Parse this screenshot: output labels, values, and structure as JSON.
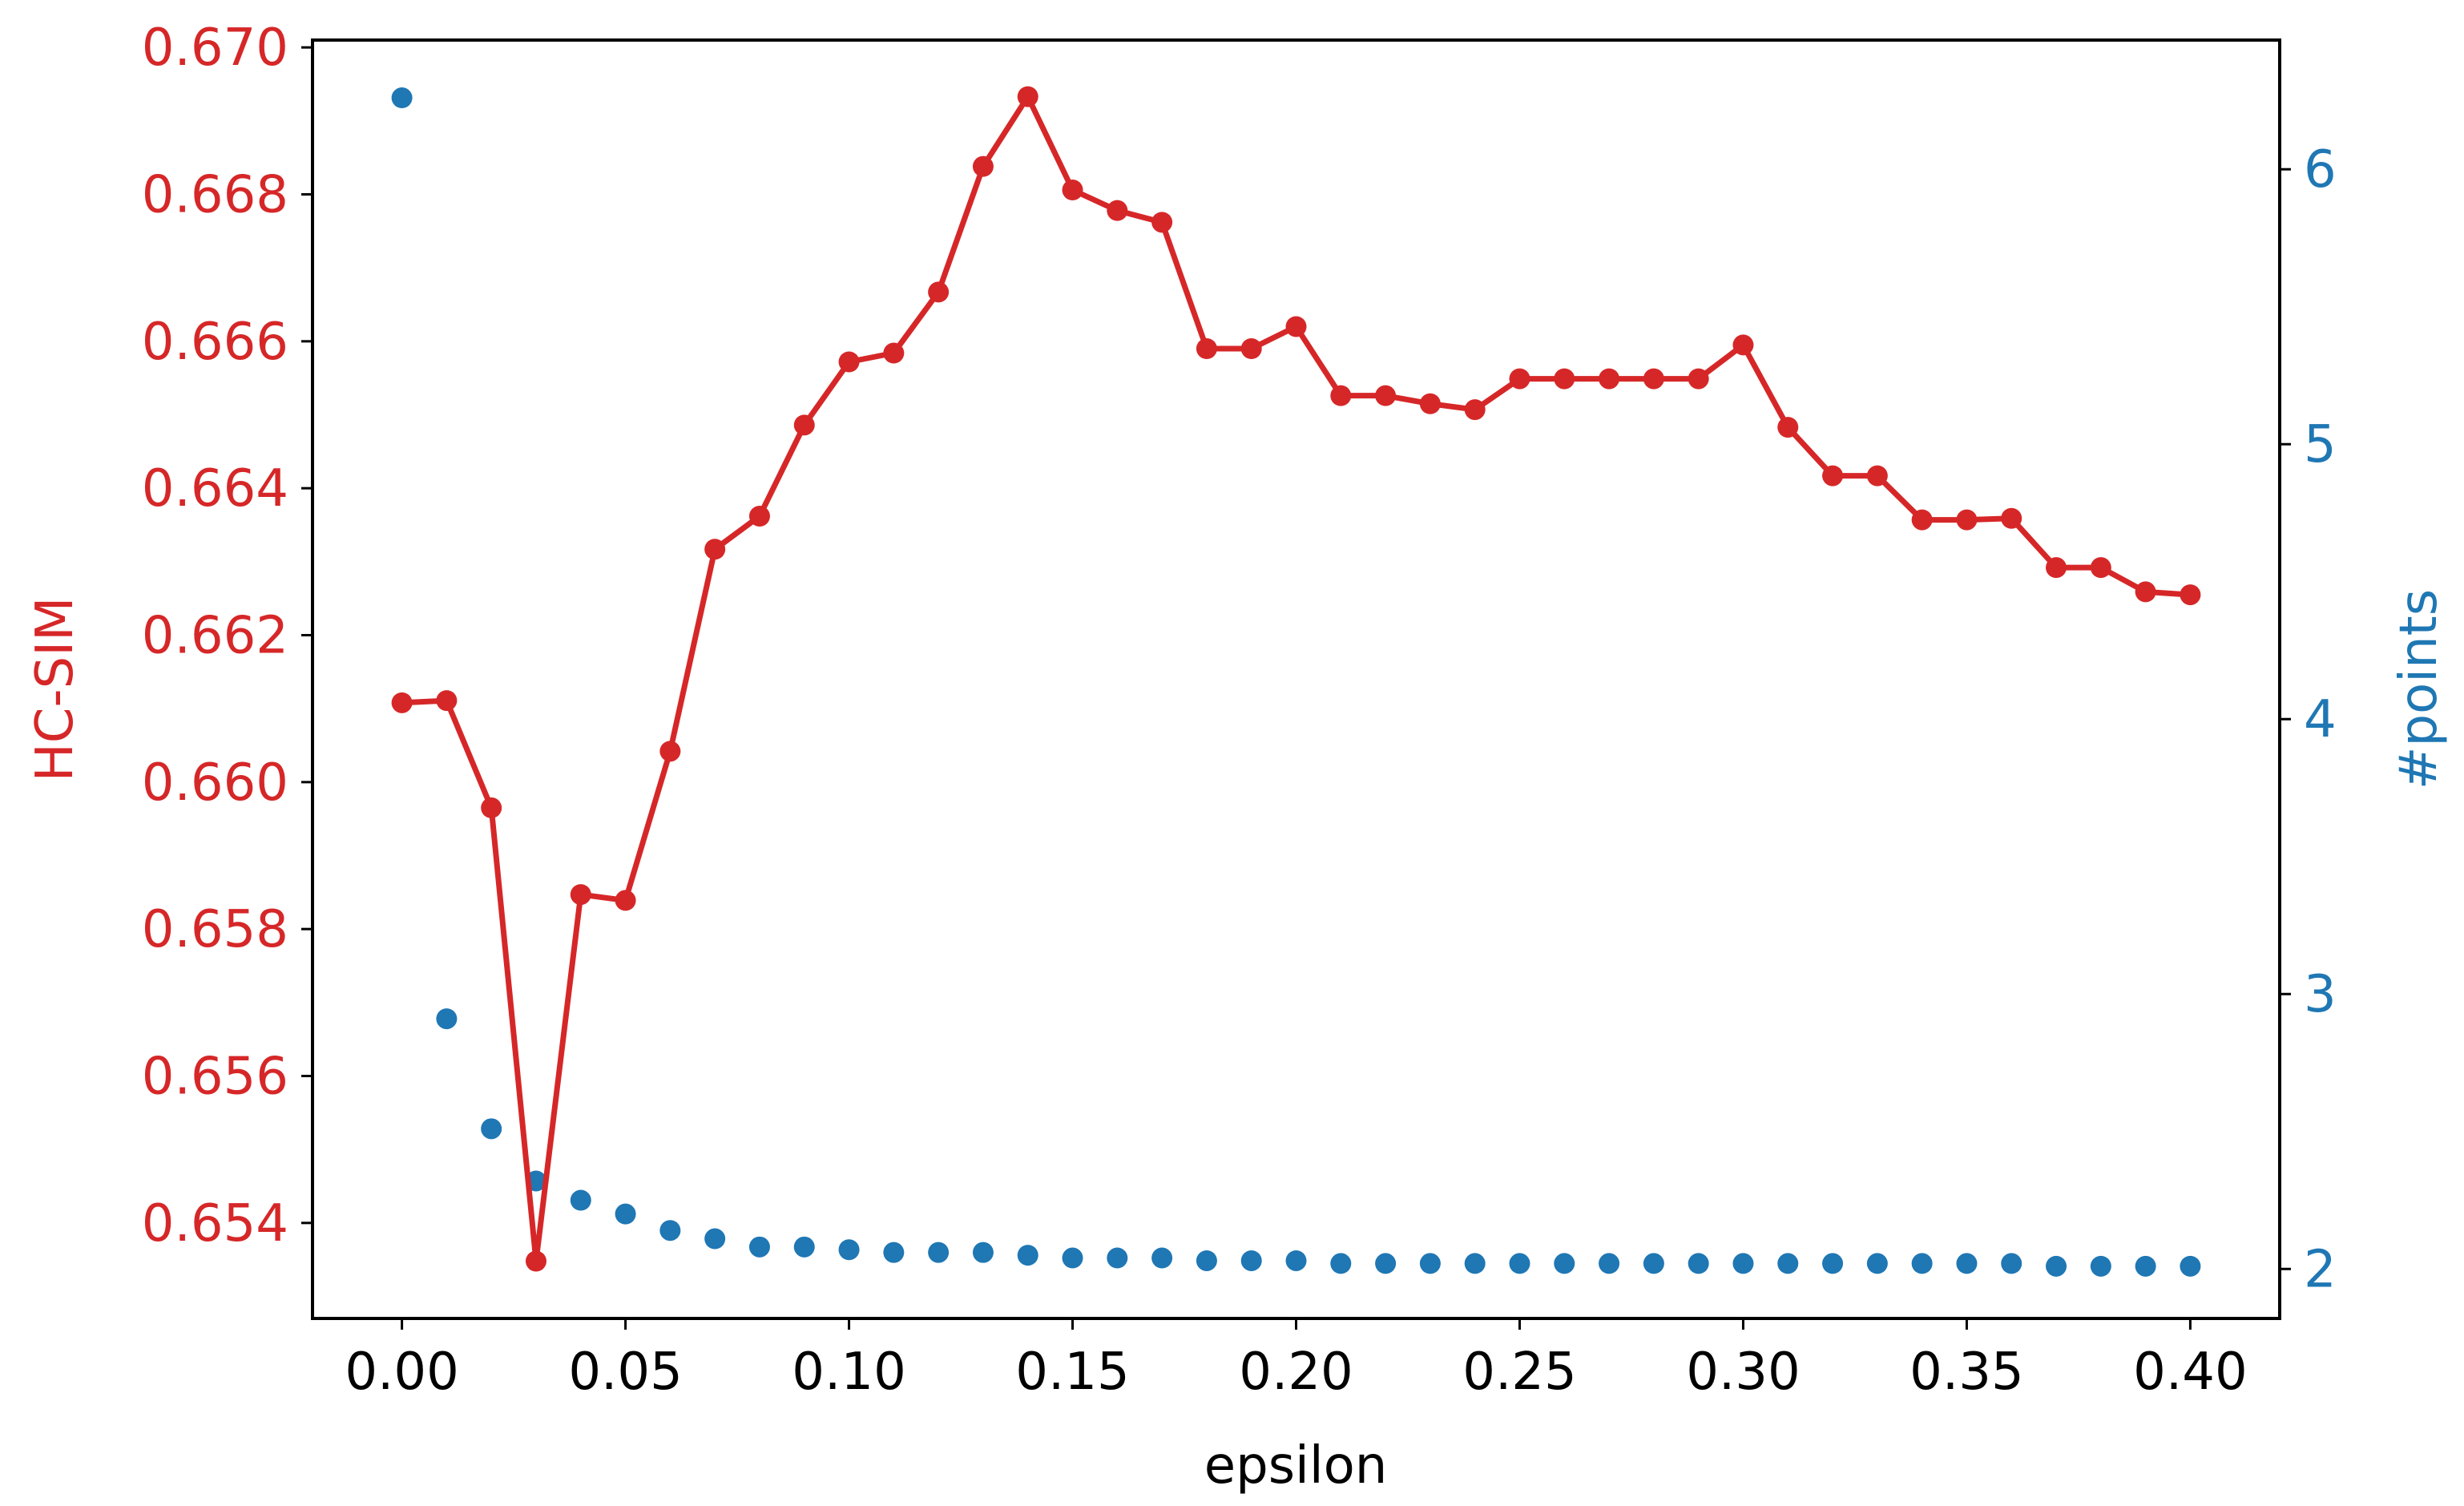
{
  "colors": {
    "left": "#d62728",
    "right": "#1f77b4",
    "axis": "#000000"
  },
  "chart_data": {
    "type": "line",
    "xlabel": "epsilon",
    "ylabel_left": "HC-SIM",
    "ylabel_right": "#points",
    "xlim": [
      -0.02,
      0.42
    ],
    "ylim_left": [
      0.6527,
      0.6701
    ],
    "ylim_right": [
      1.82,
      6.47
    ],
    "x_ticks": [
      0.0,
      0.05,
      0.1,
      0.15,
      0.2,
      0.25,
      0.3,
      0.35,
      0.4
    ],
    "x_tick_labels": [
      "0.00",
      "0.05",
      "0.10",
      "0.15",
      "0.20",
      "0.25",
      "0.30",
      "0.35",
      "0.40"
    ],
    "y_left_ticks": [
      0.654,
      0.656,
      0.658,
      0.66,
      0.662,
      0.664,
      0.666,
      0.668,
      0.67
    ],
    "y_left_tick_labels": [
      "0.654",
      "0.656",
      "0.658",
      "0.660",
      "0.662",
      "0.664",
      "0.666",
      "0.668",
      "0.670"
    ],
    "y_right_ticks": [
      2,
      3,
      4,
      5,
      6
    ],
    "y_right_tick_labels": [
      "2",
      "3",
      "4",
      "5",
      "6"
    ],
    "x": [
      0.0,
      0.01,
      0.02,
      0.03,
      0.04,
      0.05,
      0.06,
      0.07,
      0.08,
      0.09,
      0.1,
      0.11,
      0.12,
      0.13,
      0.14,
      0.15,
      0.16,
      0.17,
      0.18,
      0.19,
      0.2,
      0.21,
      0.22,
      0.23,
      0.24,
      0.25,
      0.26,
      0.27,
      0.28,
      0.29,
      0.3,
      0.31,
      0.32,
      0.33,
      0.34,
      0.35,
      0.36,
      0.37,
      0.38,
      0.39,
      0.4
    ],
    "series": [
      {
        "axis": "left",
        "style": "line-marker",
        "values": [
          0.66108,
          0.66111,
          0.65965,
          0.65348,
          0.65847,
          0.65839,
          0.66042,
          0.66317,
          0.66362,
          0.66486,
          0.66572,
          0.66584,
          0.66667,
          0.66838,
          0.66933,
          0.66806,
          0.66778,
          0.66762,
          0.6659,
          0.6659,
          0.6662,
          0.66526,
          0.66526,
          0.66515,
          0.66507,
          0.66549,
          0.66549,
          0.66549,
          0.66549,
          0.66549,
          0.66595,
          0.66483,
          0.66417,
          0.66417,
          0.66357,
          0.66357,
          0.66359,
          0.66292,
          0.66292,
          0.66259,
          0.66255
        ]
      },
      {
        "axis": "right",
        "style": "scatter",
        "values": [
          6.26,
          2.91,
          2.51,
          2.32,
          2.25,
          2.2,
          2.14,
          2.11,
          2.08,
          2.08,
          2.07,
          2.06,
          2.06,
          2.06,
          2.05,
          2.04,
          2.04,
          2.04,
          2.03,
          2.03,
          2.03,
          2.02,
          2.02,
          2.02,
          2.02,
          2.02,
          2.02,
          2.02,
          2.02,
          2.02,
          2.02,
          2.02,
          2.02,
          2.02,
          2.02,
          2.02,
          2.02,
          2.01,
          2.01,
          2.01,
          2.01
        ]
      }
    ]
  }
}
